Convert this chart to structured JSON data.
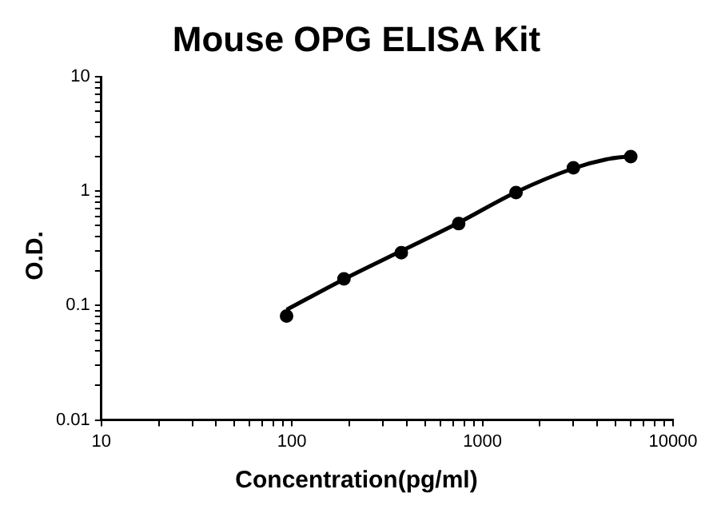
{
  "chart_data": {
    "type": "scatter",
    "title": "Mouse OPG ELISA Kit",
    "xlabel": "Concentration(pg/ml)",
    "ylabel": "O.D.",
    "log": "xy",
    "grid": false,
    "legend": false,
    "xlim": [
      10,
      10000
    ],
    "ylim": [
      0.01,
      10
    ],
    "xticks": [
      10,
      {
        "value": 20,
        "label": null
      },
      {
        "value": 30,
        "label": null
      },
      {
        "value": 40,
        "label": null
      },
      {
        "value": 50,
        "label": null
      },
      {
        "value": 60,
        "label": null
      },
      {
        "value": 70,
        "label": null
      },
      {
        "value": 80,
        "label": null
      },
      {
        "value": 90,
        "label": null
      },
      100,
      {
        "value": 200,
        "label": null
      },
      {
        "value": 300,
        "label": null
      },
      {
        "value": 400,
        "label": null
      },
      {
        "value": 500,
        "label": null
      },
      {
        "value": 600,
        "label": null
      },
      {
        "value": 700,
        "label": null
      },
      {
        "value": 800,
        "label": null
      },
      {
        "value": 900,
        "label": null
      },
      1000,
      {
        "value": 2000,
        "label": null
      },
      {
        "value": 3000,
        "label": null
      },
      {
        "value": 4000,
        "label": null
      },
      {
        "value": 5000,
        "label": null
      },
      {
        "value": 6000,
        "label": null
      },
      {
        "value": 7000,
        "label": null
      },
      {
        "value": 8000,
        "label": null
      },
      {
        "value": 9000,
        "label": null
      },
      10000
    ],
    "yticks": [
      0.01,
      {
        "value": 0.02,
        "label": null
      },
      {
        "value": 0.03,
        "label": null
      },
      {
        "value": 0.04,
        "label": null
      },
      {
        "value": 0.05,
        "label": null
      },
      {
        "value": 0.06,
        "label": null
      },
      {
        "value": 0.07,
        "label": null
      },
      {
        "value": 0.08,
        "label": null
      },
      {
        "value": 0.09,
        "label": null
      },
      0.1,
      {
        "value": 0.2,
        "label": null
      },
      {
        "value": 0.3,
        "label": null
      },
      {
        "value": 0.4,
        "label": null
      },
      {
        "value": 0.5,
        "label": null
      },
      {
        "value": 0.6,
        "label": null
      },
      {
        "value": 0.7,
        "label": null
      },
      {
        "value": 0.8,
        "label": null
      },
      {
        "value": 0.9,
        "label": null
      },
      1,
      {
        "value": 2,
        "label": null
      },
      {
        "value": 3,
        "label": null
      },
      {
        "value": 4,
        "label": null
      },
      {
        "value": 5,
        "label": null
      },
      {
        "value": 6,
        "label": null
      },
      {
        "value": 7,
        "label": null
      },
      {
        "value": 8,
        "label": null
      },
      {
        "value": 9,
        "label": null
      },
      10
    ],
    "series": [
      {
        "type": "scatter",
        "color": "#000000",
        "marker": "circle",
        "x": [
          93.75,
          187.5,
          375,
          750,
          1500,
          3000,
          6000
        ],
        "values": [
          0.081,
          0.171,
          0.29,
          0.52,
          0.97,
          1.6,
          2.0
        ]
      },
      {
        "type": "line",
        "color": "#000000",
        "marker": "none",
        "line_style": "solid",
        "x": [
          93.75,
          187.5,
          375,
          750,
          1500,
          3000,
          4500,
          6000
        ],
        "values": [
          0.092,
          0.17,
          0.3,
          0.53,
          0.98,
          1.58,
          1.9,
          2.02
        ]
      }
    ]
  }
}
